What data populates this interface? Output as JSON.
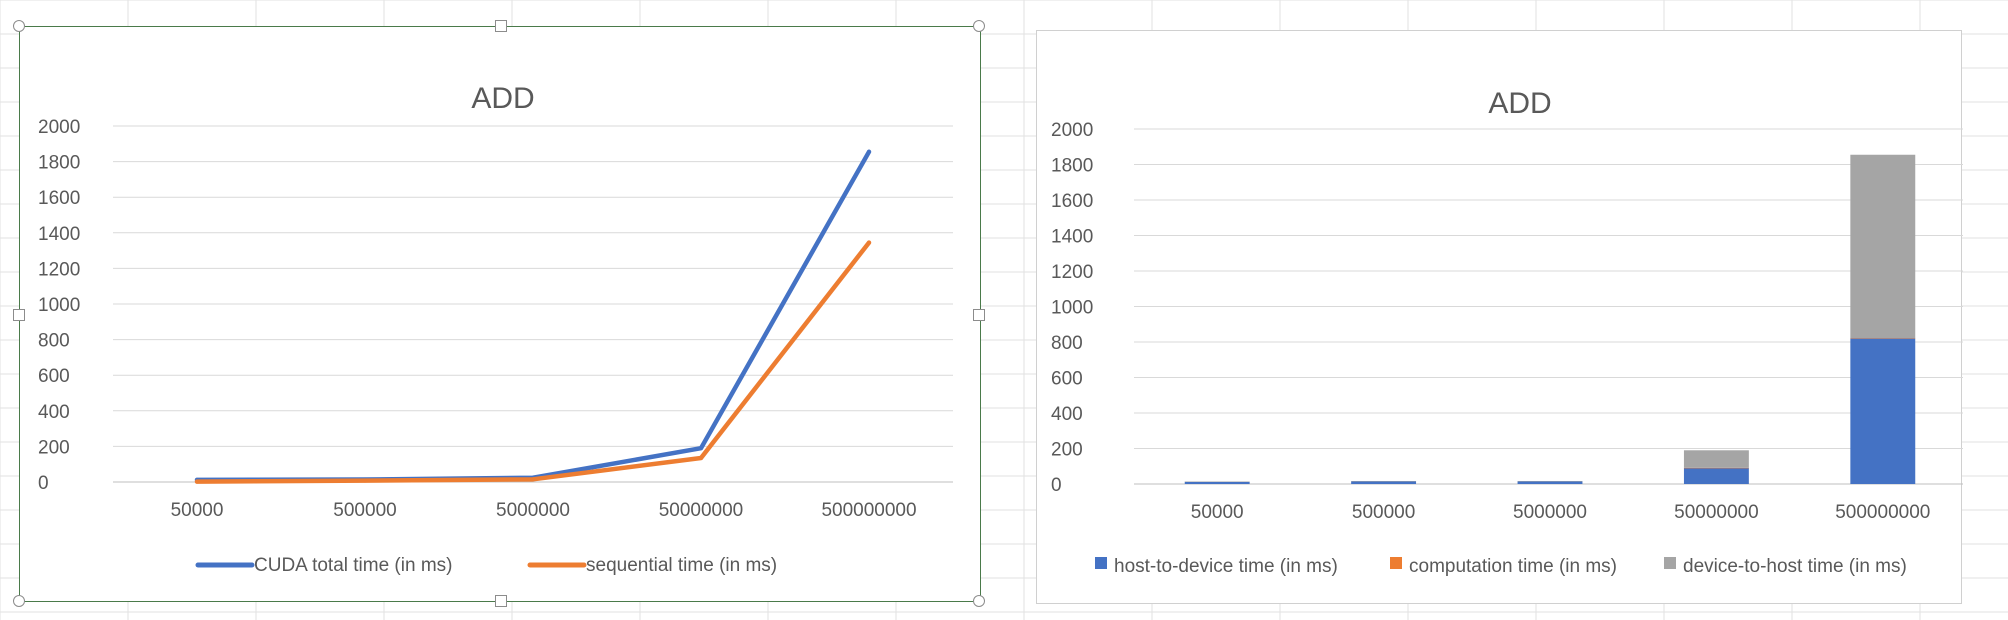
{
  "colors": {
    "cuda": "#4472c4",
    "sequential": "#ed7d31",
    "host_to_device": "#4472c4",
    "computation": "#ed7d31",
    "device_to_host": "#a5a5a5",
    "gridline": "#d9d9d9",
    "text": "#595959"
  },
  "chart_data": [
    {
      "type": "line",
      "title": "ADD",
      "categories": [
        "50000",
        "500000",
        "5000000",
        "50000000",
        "500000000"
      ],
      "ylim": [
        0,
        2000
      ],
      "yticks": [
        0,
        200,
        400,
        600,
        800,
        1000,
        1200,
        1400,
        1600,
        1800,
        2000
      ],
      "grid": true,
      "legend": "bottom",
      "series": [
        {
          "name": "CUDA total time (in ms)",
          "values": [
            12,
            14,
            24,
            190,
            1855
          ]
        },
        {
          "name": "sequential time (in ms)",
          "values": [
            2,
            8,
            15,
            135,
            1345
          ]
        }
      ]
    },
    {
      "type": "bar",
      "stacked": true,
      "title": "ADD",
      "categories": [
        "50000",
        "500000",
        "5000000",
        "50000000",
        "500000000"
      ],
      "ylim": [
        0,
        2000
      ],
      "yticks": [
        0,
        200,
        400,
        600,
        800,
        1000,
        1200,
        1400,
        1600,
        1800,
        2000
      ],
      "grid": true,
      "legend": "bottom",
      "series": [
        {
          "name": "host-to-device time (in ms)",
          "values": [
            12,
            14,
            14,
            90,
            820
          ]
        },
        {
          "name": "computation time (in ms)",
          "values": [
            0,
            0,
            0,
            1,
            2
          ]
        },
        {
          "name": "device-to-host time (in ms)",
          "values": [
            2,
            3,
            3,
            99,
            1033
          ]
        }
      ]
    }
  ]
}
